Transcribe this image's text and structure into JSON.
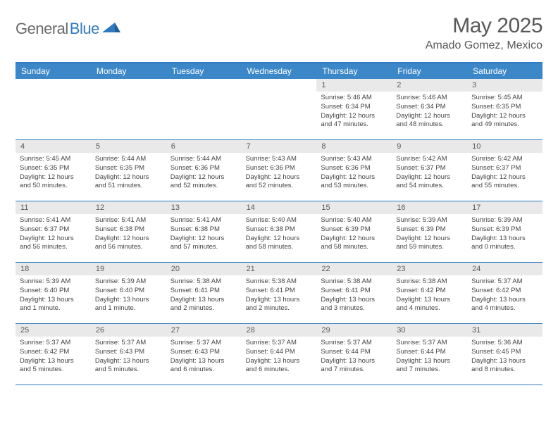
{
  "brand": {
    "general": "General",
    "blue": "Blue"
  },
  "title": {
    "month_year": "May 2025",
    "location": "Amado Gomez, Mexico"
  },
  "colors": {
    "accent": "#3b87c8",
    "rule": "#2f7abf",
    "daynum_bg": "#e9e9e9",
    "text_gray": "#595959"
  },
  "day_labels": [
    "Sunday",
    "Monday",
    "Tuesday",
    "Wednesday",
    "Thursday",
    "Friday",
    "Saturday"
  ],
  "weeks": [
    [
      {
        "n": "",
        "sr": "",
        "ss": "",
        "dl": "",
        "empty": true
      },
      {
        "n": "",
        "sr": "",
        "ss": "",
        "dl": "",
        "empty": true
      },
      {
        "n": "",
        "sr": "",
        "ss": "",
        "dl": "",
        "empty": true
      },
      {
        "n": "",
        "sr": "",
        "ss": "",
        "dl": "",
        "empty": true
      },
      {
        "n": "1",
        "sr": "Sunrise: 5:46 AM",
        "ss": "Sunset: 6:34 PM",
        "dl": "Daylight: 12 hours and 47 minutes."
      },
      {
        "n": "2",
        "sr": "Sunrise: 5:46 AM",
        "ss": "Sunset: 6:34 PM",
        "dl": "Daylight: 12 hours and 48 minutes."
      },
      {
        "n": "3",
        "sr": "Sunrise: 5:45 AM",
        "ss": "Sunset: 6:35 PM",
        "dl": "Daylight: 12 hours and 49 minutes."
      }
    ],
    [
      {
        "n": "4",
        "sr": "Sunrise: 5:45 AM",
        "ss": "Sunset: 6:35 PM",
        "dl": "Daylight: 12 hours and 50 minutes."
      },
      {
        "n": "5",
        "sr": "Sunrise: 5:44 AM",
        "ss": "Sunset: 6:35 PM",
        "dl": "Daylight: 12 hours and 51 minutes."
      },
      {
        "n": "6",
        "sr": "Sunrise: 5:44 AM",
        "ss": "Sunset: 6:36 PM",
        "dl": "Daylight: 12 hours and 52 minutes."
      },
      {
        "n": "7",
        "sr": "Sunrise: 5:43 AM",
        "ss": "Sunset: 6:36 PM",
        "dl": "Daylight: 12 hours and 52 minutes."
      },
      {
        "n": "8",
        "sr": "Sunrise: 5:43 AM",
        "ss": "Sunset: 6:36 PM",
        "dl": "Daylight: 12 hours and 53 minutes."
      },
      {
        "n": "9",
        "sr": "Sunrise: 5:42 AM",
        "ss": "Sunset: 6:37 PM",
        "dl": "Daylight: 12 hours and 54 minutes."
      },
      {
        "n": "10",
        "sr": "Sunrise: 5:42 AM",
        "ss": "Sunset: 6:37 PM",
        "dl": "Daylight: 12 hours and 55 minutes."
      }
    ],
    [
      {
        "n": "11",
        "sr": "Sunrise: 5:41 AM",
        "ss": "Sunset: 6:37 PM",
        "dl": "Daylight: 12 hours and 56 minutes."
      },
      {
        "n": "12",
        "sr": "Sunrise: 5:41 AM",
        "ss": "Sunset: 6:38 PM",
        "dl": "Daylight: 12 hours and 56 minutes."
      },
      {
        "n": "13",
        "sr": "Sunrise: 5:41 AM",
        "ss": "Sunset: 6:38 PM",
        "dl": "Daylight: 12 hours and 57 minutes."
      },
      {
        "n": "14",
        "sr": "Sunrise: 5:40 AM",
        "ss": "Sunset: 6:38 PM",
        "dl": "Daylight: 12 hours and 58 minutes."
      },
      {
        "n": "15",
        "sr": "Sunrise: 5:40 AM",
        "ss": "Sunset: 6:39 PM",
        "dl": "Daylight: 12 hours and 58 minutes."
      },
      {
        "n": "16",
        "sr": "Sunrise: 5:39 AM",
        "ss": "Sunset: 6:39 PM",
        "dl": "Daylight: 12 hours and 59 minutes."
      },
      {
        "n": "17",
        "sr": "Sunrise: 5:39 AM",
        "ss": "Sunset: 6:39 PM",
        "dl": "Daylight: 13 hours and 0 minutes."
      }
    ],
    [
      {
        "n": "18",
        "sr": "Sunrise: 5:39 AM",
        "ss": "Sunset: 6:40 PM",
        "dl": "Daylight: 13 hours and 1 minute."
      },
      {
        "n": "19",
        "sr": "Sunrise: 5:39 AM",
        "ss": "Sunset: 6:40 PM",
        "dl": "Daylight: 13 hours and 1 minute."
      },
      {
        "n": "20",
        "sr": "Sunrise: 5:38 AM",
        "ss": "Sunset: 6:41 PM",
        "dl": "Daylight: 13 hours and 2 minutes."
      },
      {
        "n": "21",
        "sr": "Sunrise: 5:38 AM",
        "ss": "Sunset: 6:41 PM",
        "dl": "Daylight: 13 hours and 2 minutes."
      },
      {
        "n": "22",
        "sr": "Sunrise: 5:38 AM",
        "ss": "Sunset: 6:41 PM",
        "dl": "Daylight: 13 hours and 3 minutes."
      },
      {
        "n": "23",
        "sr": "Sunrise: 5:38 AM",
        "ss": "Sunset: 6:42 PM",
        "dl": "Daylight: 13 hours and 4 minutes."
      },
      {
        "n": "24",
        "sr": "Sunrise: 5:37 AM",
        "ss": "Sunset: 6:42 PM",
        "dl": "Daylight: 13 hours and 4 minutes."
      }
    ],
    [
      {
        "n": "25",
        "sr": "Sunrise: 5:37 AM",
        "ss": "Sunset: 6:42 PM",
        "dl": "Daylight: 13 hours and 5 minutes."
      },
      {
        "n": "26",
        "sr": "Sunrise: 5:37 AM",
        "ss": "Sunset: 6:43 PM",
        "dl": "Daylight: 13 hours and 5 minutes."
      },
      {
        "n": "27",
        "sr": "Sunrise: 5:37 AM",
        "ss": "Sunset: 6:43 PM",
        "dl": "Daylight: 13 hours and 6 minutes."
      },
      {
        "n": "28",
        "sr": "Sunrise: 5:37 AM",
        "ss": "Sunset: 6:44 PM",
        "dl": "Daylight: 13 hours and 6 minutes."
      },
      {
        "n": "29",
        "sr": "Sunrise: 5:37 AM",
        "ss": "Sunset: 6:44 PM",
        "dl": "Daylight: 13 hours and 7 minutes."
      },
      {
        "n": "30",
        "sr": "Sunrise: 5:37 AM",
        "ss": "Sunset: 6:44 PM",
        "dl": "Daylight: 13 hours and 7 minutes."
      },
      {
        "n": "31",
        "sr": "Sunrise: 5:36 AM",
        "ss": "Sunset: 6:45 PM",
        "dl": "Daylight: 13 hours and 8 minutes."
      }
    ]
  ]
}
